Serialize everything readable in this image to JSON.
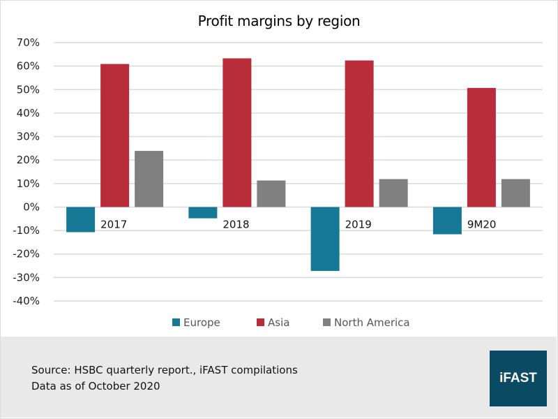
{
  "chart_data": {
    "type": "bar",
    "title": "Profit margins by region",
    "xlabel": "",
    "ylabel": "",
    "categories": [
      "2017",
      "2018",
      "2019",
      "9M20"
    ],
    "series": [
      {
        "name": "Europe",
        "color": "#157895",
        "values": [
          -10.7,
          -4.8,
          -27.2,
          -11.6
        ]
      },
      {
        "name": "Asia",
        "color": "#b92d3b",
        "values": [
          60.9,
          63.3,
          62.4,
          50.7
        ]
      },
      {
        "name": "North America",
        "color": "#808080",
        "values": [
          23.9,
          11.3,
          11.9,
          11.9
        ]
      }
    ],
    "ylim": [
      -40,
      70
    ],
    "yticks": [
      70,
      60,
      50,
      40,
      30,
      20,
      10,
      0,
      -10,
      -20,
      -30,
      -40
    ],
    "ytick_labels": [
      "70%",
      "60%",
      "50%",
      "40%",
      "30%",
      "20%",
      "10%",
      "0%",
      "-10%",
      "-20%",
      "-30%",
      "-40%"
    ],
    "grid": true,
    "legend": "bottom",
    "category_labels_position": "next to axis"
  },
  "footer": {
    "source_line": "Source: HSBC quarterly report., iFAST compilations",
    "date_line": "Data as of October 2020",
    "logo_text": "iFAST",
    "logo_color": "#0b4a63",
    "background_color": "#e9e9e9"
  }
}
